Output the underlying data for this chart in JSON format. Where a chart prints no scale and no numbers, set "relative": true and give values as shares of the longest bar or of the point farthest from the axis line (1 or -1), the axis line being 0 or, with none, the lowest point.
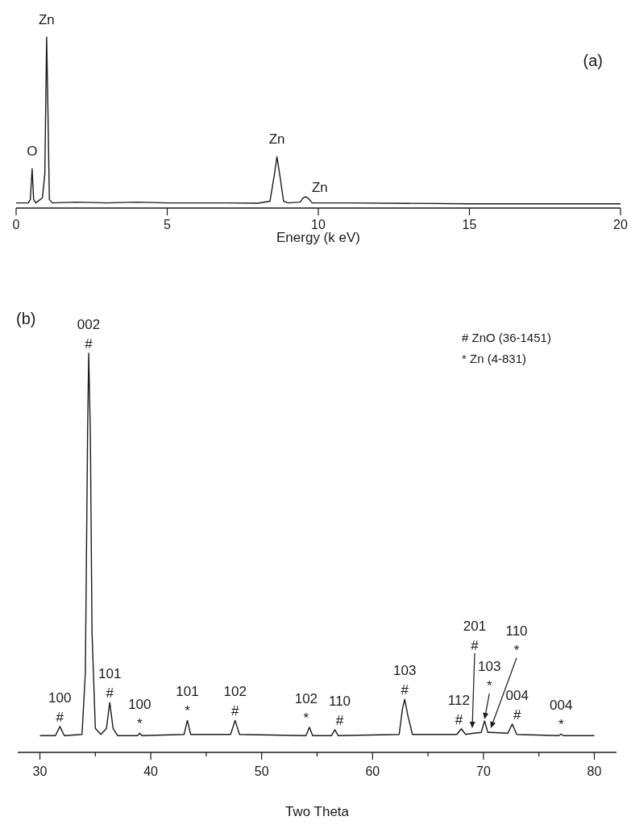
{
  "chart_data": [
    {
      "type": "line",
      "relative": true,
      "color": "#1a1a1a",
      "xlabel": "Energy (k eV)",
      "xlim": [
        0,
        20
      ],
      "xticks": [
        0,
        5,
        10,
        15,
        20
      ],
      "x": [
        0,
        0.4,
        0.47,
        0.53,
        0.58,
        0.65,
        0.8,
        0.87,
        0.95,
        1.01,
        1.05,
        1.1,
        1.2,
        2,
        3,
        4,
        5,
        6,
        7,
        8,
        8.4,
        8.55,
        8.63,
        8.72,
        8.85,
        9,
        9.4,
        9.5,
        9.57,
        9.65,
        9.8,
        11,
        15,
        20
      ],
      "values": [
        0.03,
        0.03,
        0.05,
        0.23,
        0.05,
        0.03,
        0.05,
        0.06,
        0.2,
        1.0,
        0.6,
        0.05,
        0.03,
        0.035,
        0.03,
        0.035,
        0.03,
        0.03,
        0.03,
        0.028,
        0.04,
        0.2,
        0.3,
        0.2,
        0.04,
        0.03,
        0.035,
        0.06,
        0.066,
        0.06,
        0.03,
        0.03,
        0.025,
        0.025
      ],
      "annotations": [
        "(a)",
        {
          "text": "O",
          "x": 0.53,
          "y": 0.23
        },
        {
          "text": "Zn",
          "x": 1.01,
          "y": 1.0
        },
        {
          "text": "Zn",
          "x": 8.63,
          "y": 0.3
        },
        {
          "text": "Zn",
          "x": 9.57,
          "y": 0.066
        }
      ]
    },
    {
      "type": "line",
      "relative": true,
      "color": "#1a1a1a",
      "xlabel": "Two Theta",
      "xlim": [
        28,
        82
      ],
      "xticks": [
        30,
        {
          "value": 35,
          "label": null
        },
        40,
        {
          "value": 45,
          "label": null
        },
        50,
        {
          "value": 55,
          "label": null
        },
        60,
        {
          "value": 65,
          "label": null
        },
        70,
        {
          "value": 75,
          "label": null
        },
        80
      ],
      "x": [
        30,
        31.4,
        31.8,
        32.2,
        33.8,
        34.1,
        34.3,
        34.4,
        34.55,
        34.7,
        35.0,
        35.5,
        36.0,
        36.3,
        36.6,
        37.0,
        38.8,
        39.0,
        39.2,
        43.0,
        43.3,
        43.6,
        47.2,
        47.6,
        48.0,
        54.0,
        54.3,
        54.6,
        56.3,
        56.6,
        56.9,
        62.4,
        62.7,
        62.9,
        63.2,
        63.6,
        67.6,
        68.0,
        68.4,
        69.1,
        69.8,
        70.1,
        70.4,
        70.7,
        72.2,
        72.6,
        73.0,
        76.8,
        77.0,
        77.2,
        80
      ],
      "values": [
        0.042,
        0.042,
        0.065,
        0.042,
        0.045,
        0.2,
        0.8,
        1.0,
        0.8,
        0.3,
        0.06,
        0.045,
        0.06,
        0.125,
        0.06,
        0.042,
        0.042,
        0.048,
        0.042,
        0.045,
        0.08,
        0.045,
        0.045,
        0.08,
        0.045,
        0.042,
        0.063,
        0.042,
        0.042,
        0.057,
        0.042,
        0.045,
        0.11,
        0.133,
        0.09,
        0.045,
        0.045,
        0.059,
        0.045,
        0.048,
        0.05,
        0.079,
        0.05,
        0.05,
        0.048,
        0.071,
        0.045,
        0.042,
        0.046,
        0.042,
        0.042
      ],
      "annotations": [
        "(b)",
        "# ZnO (36-1451)",
        "* Zn (4-831)",
        {
          "text": "100\n#",
          "x": 31.8,
          "y": 0.065
        },
        {
          "text": "002\n#",
          "x": 34.4,
          "y": 1.0
        },
        {
          "text": "101\n#",
          "x": 36.3,
          "y": 0.125
        },
        {
          "text": "100\n*",
          "x": 39.0,
          "y": 0.048
        },
        {
          "text": "101\n*",
          "x": 43.3,
          "y": 0.08
        },
        {
          "text": "102\n#",
          "x": 47.6,
          "y": 0.08
        },
        {
          "text": "102\n*",
          "x": 54.3,
          "y": 0.063
        },
        {
          "text": "110\n#",
          "x": 56.6,
          "y": 0.057
        },
        {
          "text": "103\n#",
          "x": 62.9,
          "y": 0.133
        },
        {
          "text": "112\n#",
          "x": 68.0,
          "y": 0.059
        },
        "201\n#",
        {
          "text": "103\n*",
          "x": 70.1,
          "y": 0.079
        },
        "110\n*",
        {
          "text": "004\n#",
          "x": 72.6,
          "y": 0.071
        },
        {
          "text": "004\n*",
          "x": 77.0,
          "y": 0.046
        }
      ]
    }
  ]
}
